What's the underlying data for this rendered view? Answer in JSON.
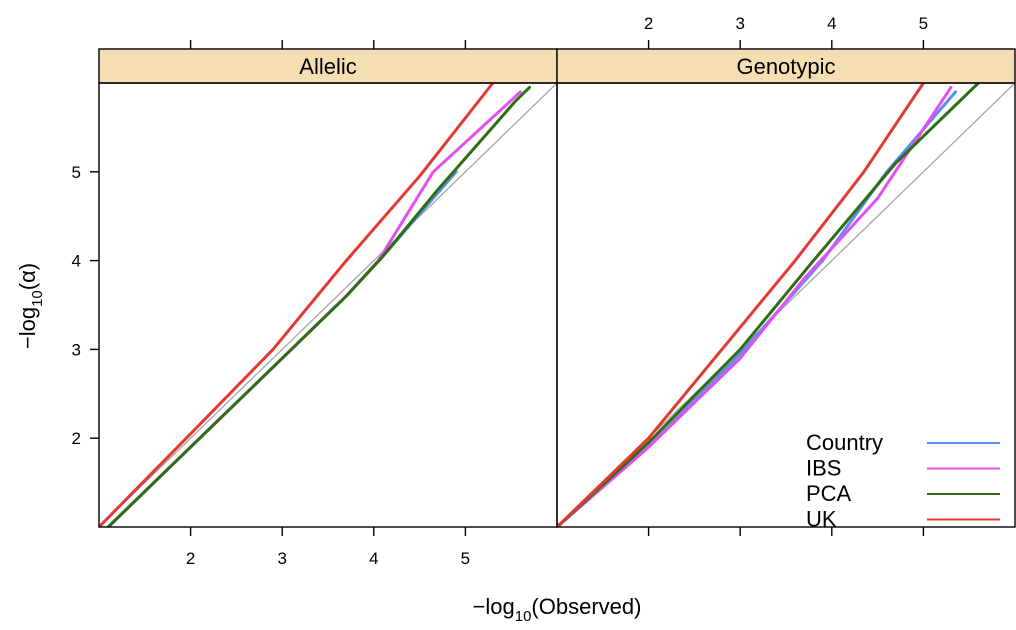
{
  "chart_data": {
    "type": "line",
    "layout": "two panels side by side with strip headers",
    "panels": [
      {
        "name": "Allelic",
        "series": [
          {
            "name": "Country",
            "color": "#5b8ff0",
            "x": [
              1.1,
              2.0,
              2.9,
              3.7,
              4.1,
              4.9
            ],
            "y": [
              1.0,
              1.9,
              2.8,
              3.6,
              4.05,
              5.0
            ]
          },
          {
            "name": "IBS",
            "color": "#e44ff0",
            "x": [
              1.1,
              2.0,
              3.0,
              3.7,
              4.05,
              4.65,
              5.6
            ],
            "y": [
              1.0,
              1.9,
              2.9,
              3.6,
              4.0,
              5.0,
              5.9
            ]
          },
          {
            "name": "PCA",
            "color": "#2e6e12",
            "x": [
              1.1,
              2.0,
              3.0,
              3.7,
              4.1,
              4.7,
              5.55,
              5.7
            ],
            "y": [
              1.0,
              1.9,
              2.9,
              3.6,
              4.05,
              4.8,
              5.8,
              5.95
            ]
          },
          {
            "name": "UK",
            "color": "#e03a33",
            "x": [
              1.0,
              2.0,
              2.9,
              3.7,
              4.5,
              5.3
            ],
            "y": [
              1.0,
              2.05,
              3.0,
              4.0,
              4.95,
              6.0
            ]
          }
        ]
      },
      {
        "name": "Genotypic",
        "series": [
          {
            "name": "Country",
            "color": "#5b8ff0",
            "x": [
              1.0,
              2.0,
              3.0,
              3.9,
              4.6,
              5.35
            ],
            "y": [
              1.0,
              1.9,
              2.95,
              4.0,
              5.0,
              5.9
            ]
          },
          {
            "name": "IBS",
            "color": "#e44ff0",
            "x": [
              1.0,
              2.0,
              3.0,
              3.7,
              4.5,
              5.3
            ],
            "y": [
              1.0,
              1.9,
              2.9,
              3.8,
              4.7,
              5.95
            ]
          },
          {
            "name": "PCA",
            "color": "#2e6e12",
            "x": [
              1.0,
              2.0,
              3.0,
              3.8,
              4.7,
              5.6
            ],
            "y": [
              1.0,
              1.95,
              3.0,
              4.0,
              5.1,
              6.0
            ]
          },
          {
            "name": "UK",
            "color": "#e03a33",
            "x": [
              1.0,
              2.0,
              2.8,
              3.6,
              4.35,
              5.0
            ],
            "y": [
              1.0,
              2.0,
              3.0,
              4.0,
              5.0,
              6.0
            ]
          }
        ]
      }
    ],
    "reference_line": "y = x",
    "xlabel_prefix": "−log",
    "xlabel_sub": "10",
    "xlabel_arg": "(Observed)",
    "ylabel_prefix": "−log",
    "ylabel_sub": "10",
    "ylabel_arg": "(α)",
    "xlim": [
      1.0,
      6.0
    ],
    "ylim": [
      1.0,
      6.0
    ],
    "xticks": [
      2,
      3,
      4,
      5
    ],
    "yticks": [
      2,
      3,
      4,
      5
    ],
    "bottom_tick_labels": [
      "2",
      "3",
      "4",
      "5"
    ],
    "top_tick_labels": [
      "2",
      "3",
      "4",
      "5"
    ],
    "left_tick_labels": [
      "2",
      "3",
      "4",
      "5"
    ],
    "legend": {
      "placement": "bottom-right of Genotypic panel",
      "entries": [
        {
          "label": "Country",
          "color": "#5b8ff0"
        },
        {
          "label": "IBS",
          "color": "#e44ff0"
        },
        {
          "label": "PCA",
          "color": "#2e6e12"
        },
        {
          "label": "UK",
          "color": "#e03a33"
        }
      ]
    },
    "colors": {
      "strip_background": "#f5deb3",
      "reference_line": "#a6a6a6"
    },
    "grid": false
  }
}
